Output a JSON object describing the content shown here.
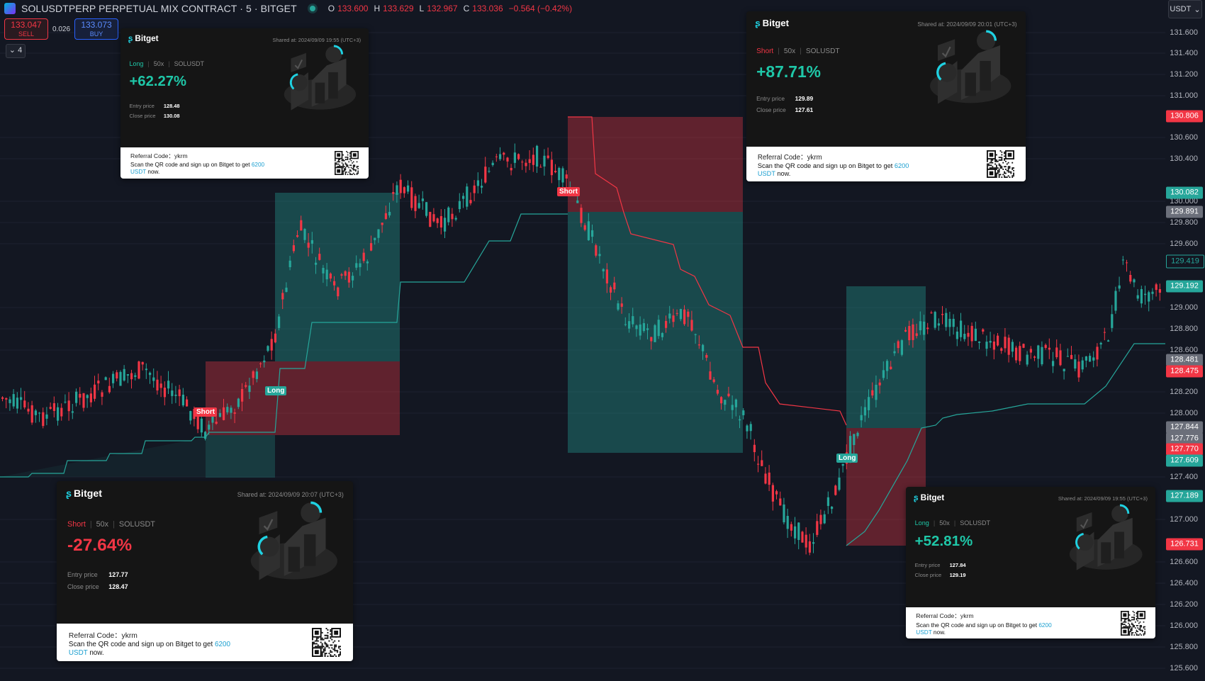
{
  "header": {
    "title": "SOLUSDTPERP PERPETUAL MIX CONTRACT · 5 · BITGET",
    "ohlc": [
      {
        "k": "O",
        "v": "133.600"
      },
      {
        "k": "H",
        "v": "133.629"
      },
      {
        "k": "L",
        "v": "132.967"
      },
      {
        "k": "C",
        "v": "133.036"
      },
      {
        "k": "",
        "v": "−0.564 (−0.42%)"
      }
    ]
  },
  "trade": {
    "sell_price": "133.047",
    "sell_label": "SELL",
    "spread": "0.026",
    "buy_price": "133.073",
    "buy_label": "BUY",
    "collapse_label": "4"
  },
  "currency": "USDT",
  "colors": {
    "up": "#26a69a",
    "down": "#f23645",
    "bg": "#131722",
    "accent": "#1fd1e1"
  },
  "axis": {
    "ticks": [
      "131.600",
      "131.400",
      "131.200",
      "131.000",
      "130.600",
      "130.400",
      "130.000",
      "129.800",
      "129.600",
      "129.000",
      "128.800",
      "128.600",
      "128.200",
      "128.000",
      "127.400",
      "127.000",
      "126.600",
      "126.400",
      "126.200",
      "126.000",
      "125.800",
      "125.600"
    ],
    "tags": [
      {
        "label": "130.806",
        "color": "#f23645"
      },
      {
        "label": "130.082",
        "color": "#26a69a"
      },
      {
        "label": "129.891",
        "color": "#6b6f7a"
      },
      {
        "label": "129.419",
        "color": "#131722"
      },
      {
        "label": "129.192",
        "color": "#26a69a"
      },
      {
        "label": "128.481",
        "color": "#6b6f7a"
      },
      {
        "label": "128.475",
        "color": "#f23645"
      },
      {
        "label": "127.844",
        "color": "#6b6f7a"
      },
      {
        "label": "127.776",
        "color": "#6b6f7a"
      },
      {
        "label": "127.770",
        "color": "#f23645"
      },
      {
        "label": "127.609",
        "color": "#26a69a"
      },
      {
        "label": "127.189",
        "color": "#26a69a"
      },
      {
        "label": "126.731",
        "color": "#f23645"
      }
    ]
  },
  "signals": [
    {
      "label": "Short",
      "type": "short"
    },
    {
      "label": "Long",
      "type": "long"
    },
    {
      "label": "Short",
      "type": "short"
    },
    {
      "label": "Long",
      "type": "long"
    }
  ],
  "cards": [
    {
      "brand": "Bitget",
      "shared": "Shared at: 2024/09/09 19:55 (UTC+3)",
      "side": "Long",
      "side_type": "long",
      "leverage": "50x",
      "pair": "SOLUSDT",
      "pct": "+62.27%",
      "pct_type": "pos",
      "entry_label": "Entry price",
      "entry": "128.48",
      "close_label": "Close price",
      "close": "130.08",
      "ref_label": "Referral Code：",
      "ref_code": "ykrm",
      "scan_text": "Scan the QR code and sign up on Bitget to get ",
      "scan_hl": "6200 USDT",
      "scan_end": " now."
    },
    {
      "brand": "Bitget",
      "shared": "Shared at: 2024/09/09 20:01 (UTC+3)",
      "side": "Short",
      "side_type": "short",
      "leverage": "50x",
      "pair": "SOLUSDT",
      "pct": "+87.71%",
      "pct_type": "pos",
      "entry_label": "Entry price",
      "entry": "129.89",
      "close_label": "Close price",
      "close": "127.61",
      "ref_label": "Referral Code：",
      "ref_code": "ykrm",
      "scan_text": "Scan the QR code and sign up on Bitget to get ",
      "scan_hl": "6200 USDT",
      "scan_end": " now."
    },
    {
      "brand": "Bitget",
      "shared": "Shared at: 2024/09/09 20:07 (UTC+3)",
      "side": "Short",
      "side_type": "short",
      "leverage": "50x",
      "pair": "SOLUSDT",
      "pct": "-27.64%",
      "pct_type": "neg",
      "entry_label": "Entry price",
      "entry": "127.77",
      "close_label": "Close price",
      "close": "128.47",
      "ref_label": "Referral Code：",
      "ref_code": "ykrm",
      "scan_text": "Scan the QR code and sign up on Bitget to get ",
      "scan_hl": "6200 USDT",
      "scan_end": " now."
    },
    {
      "brand": "Bitget",
      "shared": "Shared at: 2024/09/09 19:55 (UTC+3)",
      "side": "Long",
      "side_type": "long",
      "leverage": "50x",
      "pair": "SOLUSDT",
      "pct": "+52.81%",
      "pct_type": "pos",
      "entry_label": "Entry price",
      "entry": "127.84",
      "close_label": "Close price",
      "close": "129.19",
      "ref_label": "Referral Code：",
      "ref_code": "ykrm",
      "scan_text": "Scan the QR code and sign up on Bitget to get ",
      "scan_hl": "6200 USDT",
      "scan_end": " now."
    }
  ]
}
